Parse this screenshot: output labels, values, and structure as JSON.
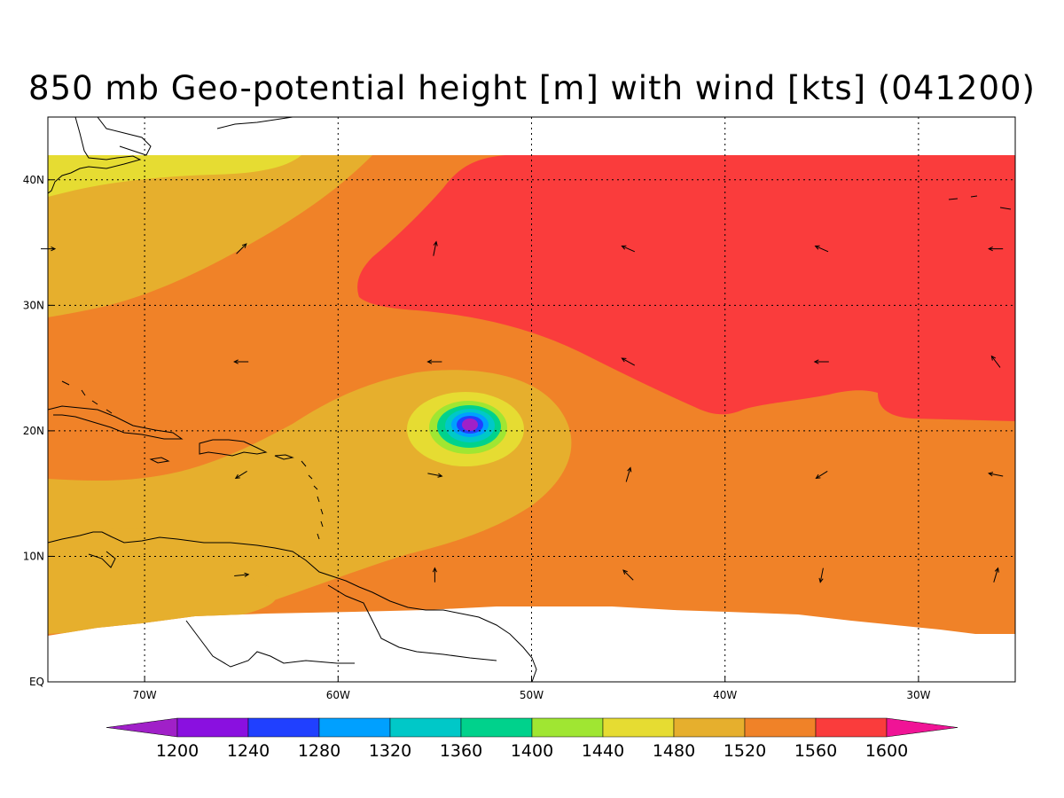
{
  "title": "850 mb Geo-potential height [m] with wind [kts] (041200)",
  "map": {
    "lon_range": [
      -75,
      -25
    ],
    "lat_range": [
      0,
      45
    ],
    "x_ticks": [
      {
        "lon": -70,
        "label": "70W"
      },
      {
        "lon": -60,
        "label": "60W"
      },
      {
        "lon": -50,
        "label": "50W"
      },
      {
        "lon": -40,
        "label": "40W"
      },
      {
        "lon": -30,
        "label": "30W"
      }
    ],
    "y_ticks": [
      {
        "lat": 0,
        "label": "EQ"
      },
      {
        "lat": 10,
        "label": "10N"
      },
      {
        "lat": 20,
        "label": "20N"
      },
      {
        "lat": 30,
        "label": "30N"
      },
      {
        "lat": 40,
        "label": "40N"
      }
    ],
    "grid": "dotted",
    "storm_center": {
      "lon": -53.2,
      "lat": 20.5
    },
    "contour_colors": {
      "1200": "#a020c8",
      "1240": "#8a10e0",
      "1280": "#2040ff",
      "1320": "#00a0ff",
      "1360": "#00c8c8",
      "1400": "#00d28c",
      "1440": "#a0e632",
      "1480": "#e6dc32",
      "1520": "#e6af2d",
      "1560": "#f08228",
      "1600": "#fa3c3c"
    },
    "wind_vectors": [
      {
        "lon": -75,
        "lat": 34.5,
        "u": 1,
        "v": 0
      },
      {
        "lon": -65,
        "lat": 34.5,
        "u": 0.7,
        "v": 0.7
      },
      {
        "lon": -55,
        "lat": 34.5,
        "u": 0.2,
        "v": 1
      },
      {
        "lon": -45,
        "lat": 34.5,
        "u": -0.9,
        "v": 0.4
      },
      {
        "lon": -35,
        "lat": 34.5,
        "u": -0.9,
        "v": 0.4
      },
      {
        "lon": -26,
        "lat": 34.5,
        "u": -1,
        "v": 0
      },
      {
        "lon": -65,
        "lat": 25.5,
        "u": -1,
        "v": 0
      },
      {
        "lon": -55,
        "lat": 25.5,
        "u": -1,
        "v": 0
      },
      {
        "lon": -45,
        "lat": 25.5,
        "u": -0.9,
        "v": 0.5
      },
      {
        "lon": -35,
        "lat": 25.5,
        "u": -1,
        "v": 0
      },
      {
        "lon": -26,
        "lat": 25.5,
        "u": -0.6,
        "v": 0.8
      },
      {
        "lon": -65,
        "lat": 16.5,
        "u": -0.8,
        "v": -0.5
      },
      {
        "lon": -55,
        "lat": 16.5,
        "u": 1,
        "v": -0.2
      },
      {
        "lon": -45,
        "lat": 16.5,
        "u": 0.3,
        "v": 1
      },
      {
        "lon": -35,
        "lat": 16.5,
        "u": -0.8,
        "v": -0.5
      },
      {
        "lon": -26,
        "lat": 16.5,
        "u": -1,
        "v": 0.2
      },
      {
        "lon": -65,
        "lat": 8.5,
        "u": 1,
        "v": 0.1
      },
      {
        "lon": -55,
        "lat": 8.5,
        "u": 0,
        "v": 1
      },
      {
        "lon": -45,
        "lat": 8.5,
        "u": -0.7,
        "v": 0.7
      },
      {
        "lon": -35,
        "lat": 8.5,
        "u": -0.2,
        "v": -1
      },
      {
        "lon": -26,
        "lat": 8.5,
        "u": 0.3,
        "v": 1
      }
    ]
  },
  "colorbar": {
    "colors": [
      "#a020c8",
      "#8a10e0",
      "#2040ff",
      "#00a0ff",
      "#00c8c8",
      "#00d28c",
      "#a0e632",
      "#e6dc32",
      "#e6af2d",
      "#f08228",
      "#fa3c3c",
      "#f01496"
    ],
    "labels": [
      "1200",
      "1240",
      "1280",
      "1320",
      "1360",
      "1400",
      "1440",
      "1480",
      "1520",
      "1560",
      "1600"
    ]
  }
}
